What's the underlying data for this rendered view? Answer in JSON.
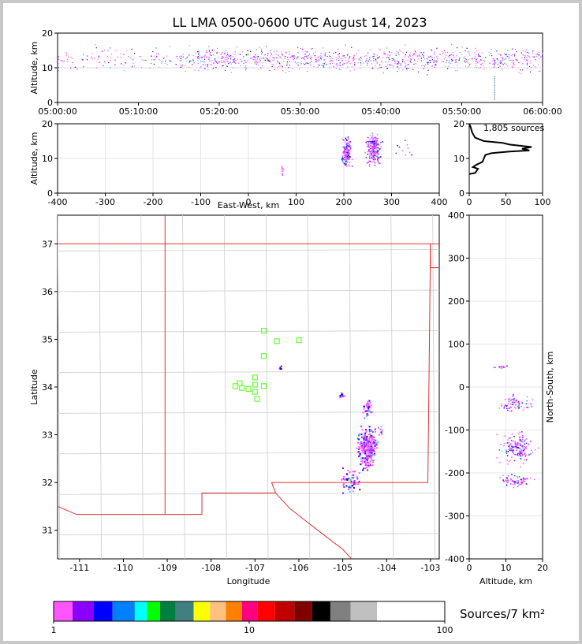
{
  "chart_data": {
    "type": "scatter",
    "title": "LL LMA 0500-0600 UTC August 14, 2023",
    "panels": {
      "altitude_time": {
        "ylabel": "Altitude, km",
        "ylim": [
          0,
          20
        ],
        "yticks": [
          "0",
          "10",
          "20"
        ],
        "xticks": [
          "05:00:00",
          "05:10:00",
          "05:20:00",
          "05:30:00",
          "05:40:00",
          "05:50:00",
          "06:00:00"
        ],
        "xrange_minutes": [
          0,
          60
        ]
      },
      "altitude_east_west": {
        "ylabel": "Altitude, km",
        "xlabel": "East-West, km",
        "xlim": [
          -400,
          400
        ],
        "ylim": [
          0,
          20
        ],
        "xticks": [
          "-400",
          "-300",
          "-200",
          "-100",
          "0",
          "100",
          "200",
          "300",
          "400"
        ],
        "yticks": [
          "0",
          "10",
          "20"
        ]
      },
      "altitude_histogram": {
        "annotation": "1,805 sources",
        "xlim": [
          0,
          100
        ],
        "ylim": [
          0,
          20
        ],
        "xticks": [
          "0",
          "50",
          "100"
        ],
        "yticks": [
          "0",
          "10",
          "20"
        ],
        "profile": [
          [
            0,
            5.5
          ],
          [
            8,
            5.8
          ],
          [
            12,
            7.0
          ],
          [
            5,
            7.5
          ],
          [
            10,
            8.2
          ],
          [
            18,
            9.0
          ],
          [
            20,
            10.0
          ],
          [
            22,
            11.0
          ],
          [
            30,
            11.5
          ],
          [
            55,
            12.0
          ],
          [
            82,
            12.3
          ],
          [
            72,
            12.8
          ],
          [
            85,
            13.3
          ],
          [
            55,
            14.0
          ],
          [
            45,
            14.5
          ],
          [
            20,
            15.0
          ],
          [
            8,
            16.0
          ],
          [
            4,
            17.5
          ],
          [
            2,
            19.0
          ],
          [
            0,
            20.0
          ]
        ]
      },
      "plan_view": {
        "xlabel": "Longitude",
        "ylabel": "Latitude",
        "xlim": [
          -111.5,
          -102.8
        ],
        "ylim": [
          30.4,
          37.6
        ],
        "xticks": [
          "-111",
          "-110",
          "-109",
          "-108",
          "-107",
          "-106",
          "-105",
          "-104",
          "-103"
        ],
        "yticks": [
          "31",
          "32",
          "33",
          "34",
          "35",
          "36",
          "37"
        ],
        "stations": [
          [
            -106.8,
            35.18
          ],
          [
            -106.5,
            34.96
          ],
          [
            -106.0,
            34.98
          ],
          [
            -106.8,
            34.65
          ],
          [
            -107.0,
            34.2
          ],
          [
            -107.35,
            34.08
          ],
          [
            -107.0,
            34.05
          ],
          [
            -107.45,
            34.02
          ],
          [
            -107.3,
            33.98
          ],
          [
            -107.15,
            33.96
          ],
          [
            -106.8,
            34.02
          ],
          [
            -107.0,
            33.9
          ],
          [
            -106.95,
            33.75
          ]
        ],
        "clusters": [
          {
            "lon": -104.45,
            "lat": 32.75,
            "spread_lon": 0.15,
            "spread_lat": 0.28,
            "n": 260
          },
          {
            "lon": -104.85,
            "lat": 32.05,
            "spread_lon": 0.15,
            "spread_lat": 0.18,
            "n": 60
          },
          {
            "lon": -104.45,
            "lat": 33.55,
            "spread_lon": 0.06,
            "spread_lat": 0.12,
            "n": 40
          },
          {
            "lon": -105.05,
            "lat": 33.85,
            "spread_lon": 0.04,
            "spread_lat": 0.04,
            "n": 12
          },
          {
            "lon": -106.45,
            "lat": 34.42,
            "spread_lon": 0.03,
            "spread_lat": 0.03,
            "n": 8
          },
          {
            "lon": -104.15,
            "lat": 33.1,
            "spread_lon": 0.03,
            "spread_lat": 0.05,
            "n": 8
          }
        ]
      },
      "north_south_altitude": {
        "ylabel": "North-South, km",
        "xlabel": "Altitude, km",
        "xlim": [
          0,
          20
        ],
        "ylim": [
          -400,
          400
        ],
        "xticks": [
          "0",
          "10",
          "20"
        ],
        "yticks": [
          "-400",
          "-300",
          "-200",
          "-100",
          "0",
          "100",
          "200",
          "300",
          "400"
        ]
      }
    },
    "colorbar": {
      "label": "Sources/7 km²",
      "ticks": [
        "1",
        "10",
        "100"
      ],
      "colors": [
        "#ff55ff",
        "#8c00ff",
        "#0000ff",
        "#0080ff",
        "#00ffff",
        "#00ff00",
        "#008040",
        "#408080",
        "#ffff00",
        "#ffc080",
        "#ff8000",
        "#ff0080",
        "#ff0000",
        "#c00000",
        "#800000",
        "#000000",
        "#808080",
        "#c0c0c0",
        "#ffffff"
      ]
    }
  }
}
